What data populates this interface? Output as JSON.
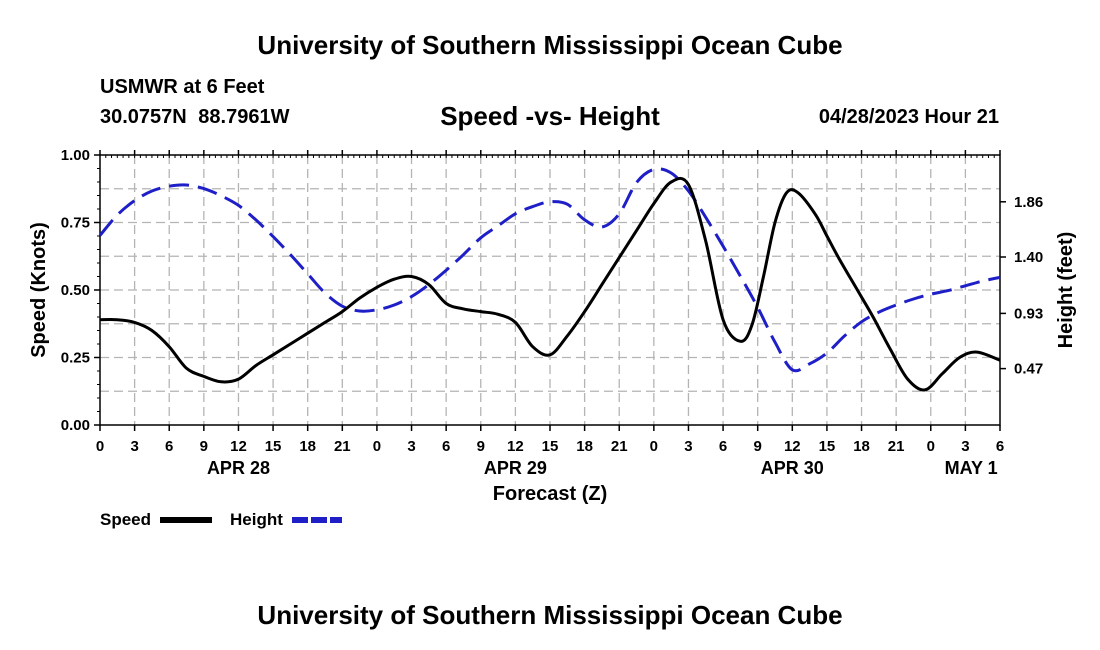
{
  "header": {
    "title": "University of Southern Mississippi Ocean Cube",
    "station": "USMWR at 6 Feet",
    "coords": "30.0757N 88.7961W",
    "subtitle": "Speed -vs- Height",
    "datetime": "04/28/2023 Hour 21"
  },
  "footer": {
    "title": "University of Southern Mississippi Ocean Cube"
  },
  "chart_data": {
    "type": "line",
    "title": "Speed -vs- Height",
    "xlabel": "Forecast (Z)",
    "ylabel_left": "Speed (Knots)",
    "ylabel_right": "Height (feet)",
    "xlim": [
      0,
      78
    ],
    "x_ticks": [
      0,
      3,
      6,
      9,
      12,
      15,
      18,
      21,
      24,
      27,
      30,
      33,
      36,
      39,
      42,
      45,
      48,
      51,
      54,
      57,
      60,
      63,
      66,
      69,
      72,
      75,
      78
    ],
    "x_tick_labels": [
      "0",
      "3",
      "6",
      "9",
      "12",
      "15",
      "18",
      "21",
      "0",
      "3",
      "6",
      "9",
      "12",
      "15",
      "18",
      "21",
      "0",
      "3",
      "6",
      "9",
      "12",
      "15",
      "18",
      "21",
      "0",
      "3",
      "6"
    ],
    "date_labels": [
      {
        "label": "APR 28",
        "x": 12
      },
      {
        "label": "APR 29",
        "x": 36
      },
      {
        "label": "APR 30",
        "x": 60
      },
      {
        "label": "MAY 1",
        "x": 75.5
      }
    ],
    "left_axis": {
      "ylim": [
        0,
        1.0
      ],
      "ticks": [
        0,
        0.25,
        0.5,
        0.75,
        1.0
      ],
      "tick_labels": [
        "0.00",
        "0.25",
        "0.50",
        "0.75",
        "1.00"
      ]
    },
    "right_axis": {
      "ylim": [
        0.0,
        2.25
      ],
      "ticks": [
        0.47,
        0.93,
        1.4,
        1.86
      ],
      "tick_labels": [
        "0.47",
        "0.93",
        "1.40",
        "1.86"
      ]
    },
    "grid": true,
    "legend": {
      "placement": "bottom-left",
      "entries": [
        {
          "label": "Speed"
        },
        {
          "label": "Height"
        }
      ]
    },
    "series": [
      {
        "name": "Speed",
        "axis": "left",
        "color": "#000000",
        "style": "solid",
        "x": [
          0,
          1.5,
          3,
          4.5,
          6,
          7.5,
          9,
          10.5,
          12,
          13.5,
          15,
          16.5,
          18,
          19.5,
          21,
          22.5,
          24,
          25.5,
          27,
          28.5,
          30,
          31.5,
          33,
          34.5,
          36,
          37.5,
          39,
          40.5,
          42,
          43.5,
          45,
          46.5,
          48,
          49.5,
          51,
          52.5,
          54,
          55.5,
          56.5,
          57.5,
          58.5,
          59.5,
          60.5,
          62,
          63,
          64,
          65.5,
          67,
          68.5,
          70,
          71.5,
          73,
          74.5,
          76,
          78
        ],
        "values": [
          0.39,
          0.39,
          0.38,
          0.35,
          0.29,
          0.21,
          0.18,
          0.16,
          0.17,
          0.22,
          0.26,
          0.3,
          0.34,
          0.38,
          0.42,
          0.47,
          0.51,
          0.54,
          0.55,
          0.52,
          0.45,
          0.43,
          0.42,
          0.41,
          0.38,
          0.29,
          0.26,
          0.33,
          0.42,
          0.52,
          0.62,
          0.72,
          0.82,
          0.9,
          0.89,
          0.68,
          0.39,
          0.31,
          0.37,
          0.55,
          0.75,
          0.86,
          0.86,
          0.78,
          0.7,
          0.62,
          0.51,
          0.4,
          0.28,
          0.17,
          0.13,
          0.19,
          0.25,
          0.27,
          0.24
        ]
      },
      {
        "name": "Height",
        "axis": "right",
        "color": "#1f1fc8",
        "style": "dashed",
        "x": [
          0,
          1.5,
          3,
          4.5,
          6,
          7.5,
          9,
          10.5,
          12,
          13.5,
          15,
          16.5,
          18,
          19.5,
          21,
          22.5,
          24,
          25.5,
          27,
          28.5,
          30,
          31.5,
          33,
          34.5,
          36,
          37.5,
          39,
          40.5,
          42,
          43.5,
          45,
          46.5,
          48,
          49.5,
          51,
          52.5,
          54,
          55.5,
          57,
          58.5,
          60,
          61.5,
          63,
          64.5,
          66,
          67.5,
          69,
          70.5,
          72,
          73.5,
          75,
          76.5,
          78
        ],
        "values": [
          1.58,
          1.75,
          1.87,
          1.95,
          1.99,
          2.0,
          1.97,
          1.91,
          1.83,
          1.71,
          1.57,
          1.42,
          1.26,
          1.1,
          0.99,
          0.95,
          0.96,
          1.0,
          1.07,
          1.17,
          1.29,
          1.42,
          1.56,
          1.66,
          1.76,
          1.82,
          1.86,
          1.84,
          1.71,
          1.65,
          1.76,
          2.02,
          2.13,
          2.1,
          1.95,
          1.73,
          1.49,
          1.24,
          0.98,
          0.69,
          0.46,
          0.51,
          0.6,
          0.74,
          0.86,
          0.94,
          1.0,
          1.05,
          1.09,
          1.12,
          1.16,
          1.2,
          1.23
        ]
      }
    ]
  }
}
